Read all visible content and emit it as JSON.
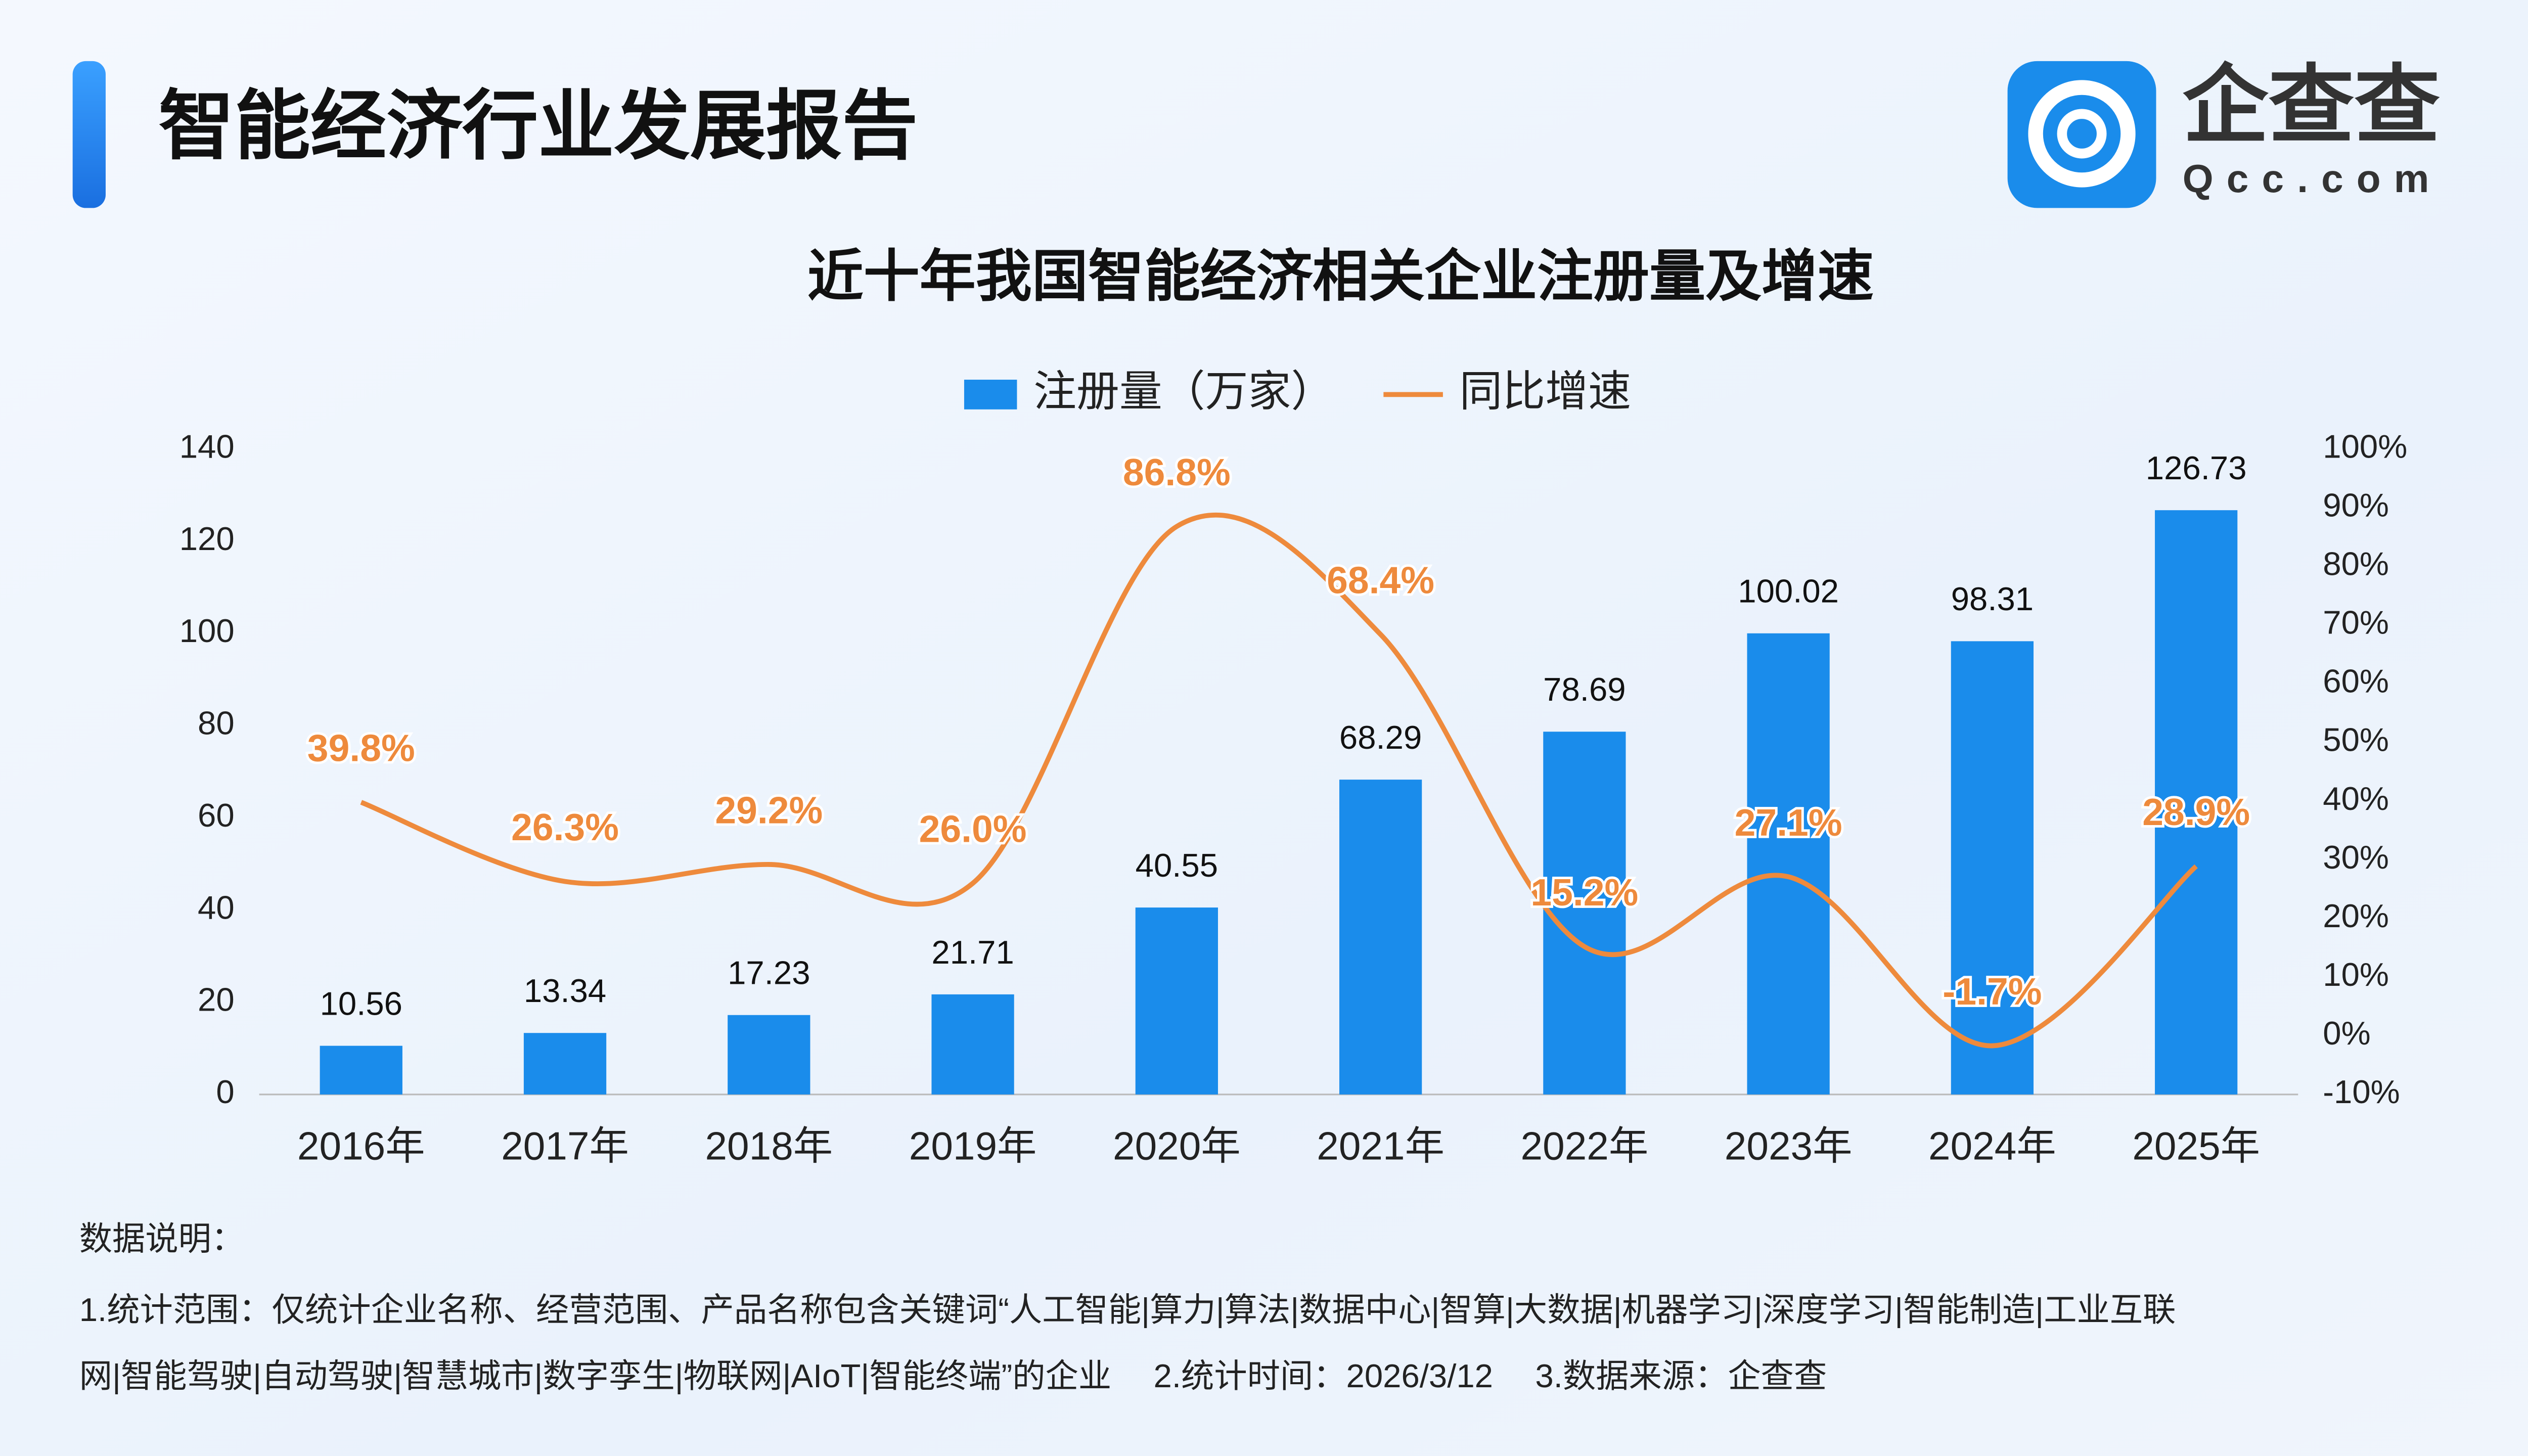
{
  "header": {
    "title": "智能经济行业发展报告"
  },
  "brand": {
    "name": "企查查",
    "domain": "Qcc.com"
  },
  "chart_data": {
    "type": "bar-line",
    "title": "近十年我国智能经济相关企业注册量及增速",
    "categories": [
      "2016年",
      "2017年",
      "2018年",
      "2019年",
      "2020年",
      "2021年",
      "2022年",
      "2023年",
      "2024年",
      "2025年"
    ],
    "series": [
      {
        "name": "注册量（万家）",
        "type": "bar",
        "color": "#1a8ceb",
        "axis": "y",
        "values": [
          10.56,
          13.34,
          17.23,
          21.71,
          40.55,
          68.29,
          78.69,
          100.02,
          98.31,
          126.73
        ]
      },
      {
        "name": "同比增速",
        "type": "line",
        "color": "#ee8a3c",
        "axis": "y2",
        "values": [
          39.8,
          26.3,
          29.2,
          26.0,
          86.8,
          68.4,
          15.2,
          27.1,
          -1.7,
          28.9
        ],
        "value_labels": [
          "39.8%",
          "26.3%",
          "29.2%",
          "26.0%",
          "86.8%",
          "68.4%",
          "15.2%",
          "27.1%",
          "-1.7%",
          "28.9%"
        ]
      }
    ],
    "ylim": [
      0,
      140
    ],
    "yticks": [
      0,
      20,
      40,
      60,
      80,
      100,
      120,
      140
    ],
    "y2lim": [
      -10,
      100
    ],
    "y2ticks": [
      {
        "value": -10,
        "label": "-10%"
      },
      {
        "value": 0,
        "label": "0%"
      },
      {
        "value": 10,
        "label": "10%"
      },
      {
        "value": 20,
        "label": "20%"
      },
      {
        "value": 30,
        "label": "30%"
      },
      {
        "value": 40,
        "label": "40%"
      },
      {
        "value": 50,
        "label": "50%"
      },
      {
        "value": 60,
        "label": "60%"
      },
      {
        "value": 70,
        "label": "70%"
      },
      {
        "value": 80,
        "label": "80%"
      },
      {
        "value": 90,
        "label": "90%"
      },
      {
        "value": 100,
        "label": "100%"
      }
    ],
    "grid": false,
    "legend": "top"
  },
  "notes": {
    "title": "数据说明：",
    "lines": [
      "1.统计范围：仅统计企业名称、经营范围、产品名称包含关键词“人工智能|算力|算法|数据中心|智算|大数据|机器学习|深度学习|智能制造|工业互联",
      "网|智能驾驶|自动驾驶|智慧城市|数字孪生|物联网|AIoT|智能终端”的企业　 2.统计时间：2026/3/12　 3.数据来源：企查查"
    ]
  }
}
